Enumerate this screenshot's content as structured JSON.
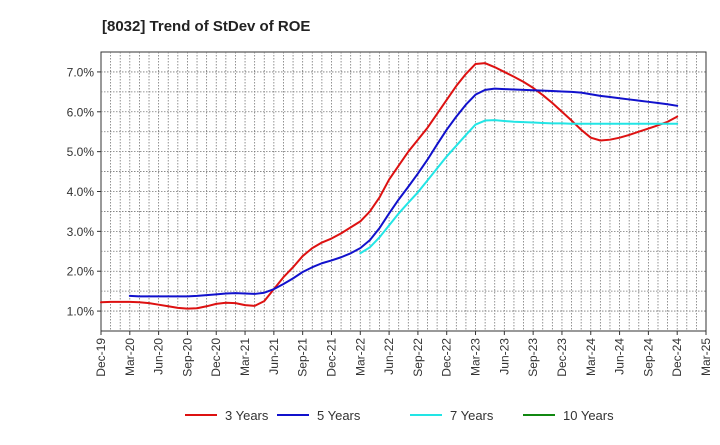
{
  "chart_data": {
    "type": "line",
    "title": "[8032]  Trend of StDev of ROE",
    "xlabel": "",
    "ylabel": "",
    "x_ticks": [
      "Dec-19",
      "Mar-20",
      "Jun-20",
      "Sep-20",
      "Dec-20",
      "Mar-21",
      "Jun-21",
      "Sep-21",
      "Dec-21",
      "Mar-22",
      "Jun-22",
      "Sep-22",
      "Dec-22",
      "Mar-23",
      "Jun-23",
      "Sep-23",
      "Dec-23",
      "Mar-24",
      "Jun-24",
      "Sep-24",
      "Dec-24",
      "Mar-25"
    ],
    "y_ticks": [
      "1.0%",
      "2.0%",
      "3.0%",
      "4.0%",
      "5.0%",
      "6.0%",
      "7.0%"
    ],
    "ylim": [
      0.5,
      7.5
    ],
    "grid": true,
    "legend_position": "bottom",
    "series": [
      {
        "name": "3 Years",
        "color": "#dd1111",
        "values": [
          [
            "Dec-19",
            1.22
          ],
          [
            "Jan-20",
            1.23
          ],
          [
            "Feb-20",
            1.23
          ],
          [
            "Mar-20",
            1.23
          ],
          [
            "Apr-20",
            1.22
          ],
          [
            "May-20",
            1.2
          ],
          [
            "Jun-20",
            1.16
          ],
          [
            "Jul-20",
            1.12
          ],
          [
            "Aug-20",
            1.08
          ],
          [
            "Sep-20",
            1.06
          ],
          [
            "Oct-20",
            1.07
          ],
          [
            "Nov-20",
            1.12
          ],
          [
            "Dec-20",
            1.18
          ],
          [
            "Jan-21",
            1.21
          ],
          [
            "Feb-21",
            1.2
          ],
          [
            "Mar-21",
            1.15
          ],
          [
            "Apr-21",
            1.13
          ],
          [
            "May-21",
            1.25
          ],
          [
            "Jun-21",
            1.55
          ],
          [
            "Jul-21",
            1.85
          ],
          [
            "Aug-21",
            2.1
          ],
          [
            "Sep-21",
            2.38
          ],
          [
            "Oct-21",
            2.58
          ],
          [
            "Nov-21",
            2.72
          ],
          [
            "Dec-21",
            2.82
          ],
          [
            "Jan-22",
            2.95
          ],
          [
            "Feb-22",
            3.1
          ],
          [
            "Mar-22",
            3.25
          ],
          [
            "Apr-22",
            3.5
          ],
          [
            "May-22",
            3.85
          ],
          [
            "Jun-22",
            4.3
          ],
          [
            "Jul-22",
            4.65
          ],
          [
            "Aug-22",
            5.0
          ],
          [
            "Sep-22",
            5.3
          ],
          [
            "Oct-22",
            5.6
          ],
          [
            "Nov-22",
            5.95
          ],
          [
            "Dec-22",
            6.3
          ],
          [
            "Jan-23",
            6.65
          ],
          [
            "Feb-23",
            6.95
          ],
          [
            "Mar-23",
            7.2
          ],
          [
            "Apr-23",
            7.22
          ],
          [
            "May-23",
            7.12
          ],
          [
            "Jun-23",
            7.0
          ],
          [
            "Jul-23",
            6.88
          ],
          [
            "Aug-23",
            6.75
          ],
          [
            "Sep-23",
            6.6
          ],
          [
            "Oct-23",
            6.42
          ],
          [
            "Nov-23",
            6.22
          ],
          [
            "Dec-23",
            6.0
          ],
          [
            "Jan-24",
            5.78
          ],
          [
            "Feb-24",
            5.55
          ],
          [
            "Mar-24",
            5.35
          ],
          [
            "Apr-24",
            5.28
          ],
          [
            "May-24",
            5.3
          ],
          [
            "Jun-24",
            5.35
          ],
          [
            "Jul-24",
            5.42
          ],
          [
            "Aug-24",
            5.5
          ],
          [
            "Sep-24",
            5.58
          ],
          [
            "Oct-24",
            5.66
          ],
          [
            "Nov-24",
            5.75
          ],
          [
            "Dec-24",
            5.88
          ]
        ]
      },
      {
        "name": "5 Years",
        "color": "#1111cc",
        "values": [
          [
            "Mar-20",
            1.38
          ],
          [
            "Apr-20",
            1.37
          ],
          [
            "May-20",
            1.37
          ],
          [
            "Jun-20",
            1.37
          ],
          [
            "Jul-20",
            1.37
          ],
          [
            "Aug-20",
            1.37
          ],
          [
            "Sep-20",
            1.37
          ],
          [
            "Oct-20",
            1.38
          ],
          [
            "Nov-20",
            1.4
          ],
          [
            "Dec-20",
            1.42
          ],
          [
            "Jan-21",
            1.44
          ],
          [
            "Feb-21",
            1.45
          ],
          [
            "Mar-21",
            1.44
          ],
          [
            "Apr-21",
            1.43
          ],
          [
            "May-21",
            1.46
          ],
          [
            "Jun-21",
            1.55
          ],
          [
            "Jul-21",
            1.68
          ],
          [
            "Aug-21",
            1.82
          ],
          [
            "Sep-21",
            1.98
          ],
          [
            "Oct-21",
            2.1
          ],
          [
            "Nov-21",
            2.2
          ],
          [
            "Dec-21",
            2.27
          ],
          [
            "Jan-22",
            2.35
          ],
          [
            "Feb-22",
            2.45
          ],
          [
            "Mar-22",
            2.58
          ],
          [
            "Apr-22",
            2.78
          ],
          [
            "May-22",
            3.08
          ],
          [
            "Jun-22",
            3.45
          ],
          [
            "Jul-22",
            3.8
          ],
          [
            "Aug-22",
            4.12
          ],
          [
            "Sep-22",
            4.45
          ],
          [
            "Oct-22",
            4.8
          ],
          [
            "Nov-22",
            5.18
          ],
          [
            "Dec-22",
            5.55
          ],
          [
            "Jan-23",
            5.88
          ],
          [
            "Feb-23",
            6.18
          ],
          [
            "Mar-23",
            6.43
          ],
          [
            "Apr-23",
            6.55
          ],
          [
            "May-23",
            6.58
          ],
          [
            "Jun-23",
            6.57
          ],
          [
            "Jul-23",
            6.56
          ],
          [
            "Aug-23",
            6.55
          ],
          [
            "Sep-23",
            6.54
          ],
          [
            "Oct-23",
            6.53
          ],
          [
            "Nov-23",
            6.52
          ],
          [
            "Dec-23",
            6.51
          ],
          [
            "Jan-24",
            6.5
          ],
          [
            "Feb-24",
            6.48
          ],
          [
            "Mar-24",
            6.44
          ],
          [
            "Apr-24",
            6.4
          ],
          [
            "May-24",
            6.37
          ],
          [
            "Jun-24",
            6.34
          ],
          [
            "Jul-24",
            6.31
          ],
          [
            "Aug-24",
            6.28
          ],
          [
            "Sep-24",
            6.25
          ],
          [
            "Oct-24",
            6.22
          ],
          [
            "Nov-24",
            6.19
          ],
          [
            "Dec-24",
            6.15
          ]
        ]
      },
      {
        "name": "7 Years",
        "color": "#22e5e5",
        "values": [
          [
            "Mar-22",
            2.45
          ],
          [
            "Apr-22",
            2.6
          ],
          [
            "May-22",
            2.85
          ],
          [
            "Jun-22",
            3.15
          ],
          [
            "Jul-22",
            3.45
          ],
          [
            "Aug-22",
            3.72
          ],
          [
            "Sep-22",
            3.98
          ],
          [
            "Oct-22",
            4.28
          ],
          [
            "Nov-22",
            4.58
          ],
          [
            "Dec-22",
            4.88
          ],
          [
            "Jan-23",
            5.15
          ],
          [
            "Feb-23",
            5.42
          ],
          [
            "Mar-23",
            5.68
          ],
          [
            "Apr-23",
            5.78
          ],
          [
            "May-23",
            5.79
          ],
          [
            "Jun-23",
            5.77
          ],
          [
            "Jul-23",
            5.75
          ],
          [
            "Aug-23",
            5.74
          ],
          [
            "Sep-23",
            5.73
          ],
          [
            "Oct-23",
            5.72
          ],
          [
            "Nov-23",
            5.71
          ],
          [
            "Dec-23",
            5.71
          ],
          [
            "Jan-24",
            5.7
          ],
          [
            "Feb-24",
            5.7
          ],
          [
            "Mar-24",
            5.7
          ],
          [
            "Apr-24",
            5.7
          ],
          [
            "May-24",
            5.7
          ],
          [
            "Jun-24",
            5.7
          ],
          [
            "Jul-24",
            5.7
          ],
          [
            "Aug-24",
            5.7
          ],
          [
            "Sep-24",
            5.7
          ],
          [
            "Oct-24",
            5.7
          ],
          [
            "Nov-24",
            5.7
          ],
          [
            "Dec-24",
            5.7
          ]
        ]
      },
      {
        "name": "10 Years",
        "color": "#118811",
        "values": []
      }
    ]
  }
}
